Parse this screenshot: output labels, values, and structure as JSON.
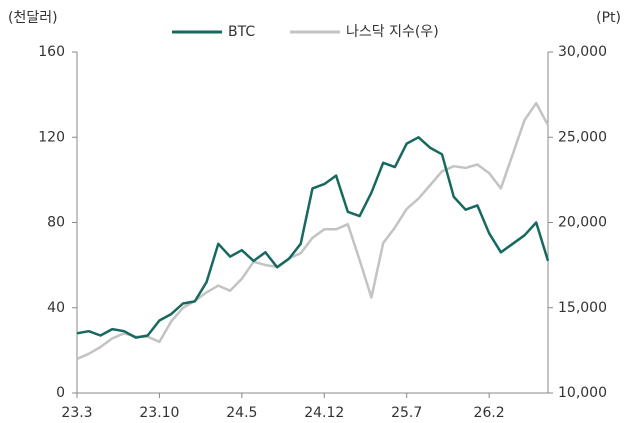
{
  "chart_data": {
    "type": "line",
    "ylabel": "(천달러)",
    "y2label": "(Pt)",
    "categories": [
      "23.3",
      null,
      null,
      null,
      null,
      null,
      null,
      "23.10",
      null,
      null,
      null,
      null,
      null,
      null,
      "24.5",
      null,
      null,
      null,
      null,
      null,
      null,
      "24.12",
      null,
      null,
      null,
      null,
      null,
      null,
      "25.7",
      null,
      null,
      null,
      null,
      null,
      null,
      "26.2",
      null,
      null,
      null,
      null,
      null
    ],
    "series": [
      {
        "name": "나스닥 지수(우)",
        "color": "#c3c3c3",
        "axis": "y2",
        "values": [
          12000,
          12300,
          12700,
          13200,
          13500,
          13300,
          13300,
          13000,
          14200,
          15000,
          15400,
          15900,
          16300,
          16000,
          16700,
          17700,
          17500,
          17400,
          17900,
          18200,
          19100,
          19600,
          19600,
          19900,
          17800,
          15600,
          18800,
          19700,
          20800,
          21400,
          22200,
          23000,
          23300,
          23200,
          23400,
          22900,
          22000,
          24000,
          26000,
          27000,
          25700
        ]
      },
      {
        "name": "BTC",
        "color": "#17695f",
        "values": [
          28,
          29,
          27,
          30,
          29,
          26,
          27,
          34,
          37,
          42,
          43,
          52,
          70,
          64,
          67,
          62,
          66,
          59,
          63,
          70,
          96,
          98,
          102,
          85,
          83,
          94,
          108,
          106,
          117,
          120,
          115,
          112,
          92,
          86,
          88,
          75,
          66,
          70,
          74,
          80,
          62
        ]
      }
    ],
    "ylim": [
      0,
      160
    ],
    "yticks": [
      0,
      40,
      80,
      120,
      160
    ],
    "y2lim": [
      10000,
      30000
    ],
    "y2ticks": [
      {
        "value": 10000,
        "label": "10,000"
      },
      {
        "value": 15000,
        "label": "15,000"
      },
      {
        "value": 20000,
        "label": "20,000"
      },
      {
        "value": 25000,
        "label": "25,000"
      },
      {
        "value": 30000,
        "label": "30,000"
      }
    ]
  }
}
